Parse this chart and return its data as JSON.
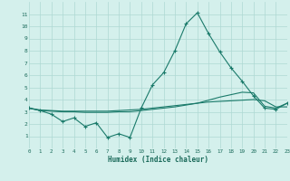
{
  "xlabel": "Humidex (Indice chaleur)",
  "x": [
    0,
    1,
    2,
    3,
    4,
    5,
    6,
    7,
    8,
    9,
    10,
    11,
    12,
    13,
    14,
    15,
    16,
    17,
    18,
    19,
    20,
    21,
    22,
    23
  ],
  "line1": [
    3.3,
    3.1,
    2.8,
    2.2,
    2.5,
    1.8,
    2.1,
    0.9,
    1.2,
    0.9,
    3.3,
    5.2,
    6.2,
    8.0,
    10.2,
    11.1,
    9.4,
    7.9,
    6.6,
    5.5,
    4.3,
    3.3,
    3.2,
    3.7
  ],
  "line2": [
    3.3,
    3.15,
    3.1,
    3.05,
    3.05,
    3.05,
    3.05,
    3.05,
    3.1,
    3.15,
    3.2,
    3.3,
    3.4,
    3.5,
    3.6,
    3.7,
    3.8,
    3.85,
    3.9,
    3.95,
    4.0,
    3.9,
    3.4,
    3.4
  ],
  "line3": [
    3.3,
    3.1,
    3.05,
    3.0,
    3.0,
    2.95,
    2.95,
    2.95,
    3.0,
    3.0,
    3.1,
    3.2,
    3.3,
    3.4,
    3.55,
    3.7,
    3.95,
    4.2,
    4.4,
    4.6,
    4.55,
    3.45,
    3.3,
    3.7
  ],
  "line_color": "#1a7a6a",
  "bg_color": "#d4f0ec",
  "grid_color": "#aed8d3",
  "tick_color": "#1a6a5a",
  "ylim": [
    0,
    12
  ],
  "xlim": [
    0,
    23
  ],
  "yticks": [
    1,
    2,
    3,
    4,
    5,
    6,
    7,
    8,
    9,
    10,
    11
  ],
  "xticks": [
    0,
    1,
    2,
    3,
    4,
    5,
    6,
    7,
    8,
    9,
    10,
    11,
    12,
    13,
    14,
    15,
    16,
    17,
    18,
    19,
    20,
    21,
    22,
    23
  ]
}
